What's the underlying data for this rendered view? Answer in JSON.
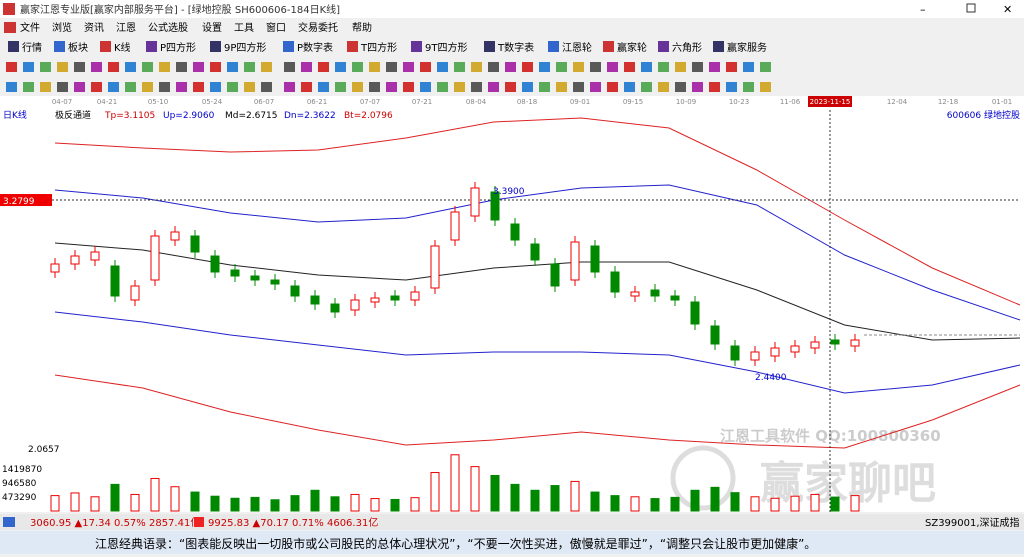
{
  "window": {
    "title": "赢家江恩专业版[赢家内部服务平台] - [绿地控股  SH600606-184日K线]"
  },
  "menu": [
    "文件",
    "浏览",
    "资讯",
    "江恩",
    "公式选股",
    "设置",
    "工具",
    "窗口",
    "交易委托",
    "帮助"
  ],
  "toolbar": [
    "行情",
    "板块",
    "K线",
    "P四方形",
    "9P四方形",
    "P数字表",
    "T四方形",
    "9T四方形",
    "T数字表",
    "江恩轮",
    "赢家轮",
    "六角形",
    "赢家服务"
  ],
  "chart": {
    "period": "日K线",
    "indicator": "极反通道",
    "params": [
      "Tp=3.1105",
      "Up=2.9060",
      "Md=2.6715",
      "Dn=2.3622",
      "Bt=2.0796"
    ],
    "stock": "600606  绿地控股",
    "cursor_price": "3.2799",
    "low_price": "2.0657",
    "high_label": "3.3900",
    "low_label": "2.4400",
    "dates": [
      "04-07",
      "04-21",
      "05-10",
      "05-24",
      "06-07",
      "06-21",
      "07-07",
      "07-21",
      "08-04",
      "08-18",
      "09-01",
      "09-15",
      "10-09",
      "10-23",
      "11-06",
      "2023-11-15",
      "12-04",
      "12-18",
      "01-01"
    ],
    "open": [
      2.92,
      2.96,
      2.98,
      2.95,
      2.78,
      2.88,
      3.08,
      3.1,
      3.0,
      2.93,
      2.9,
      2.88,
      2.85,
      2.8,
      2.76,
      2.73,
      2.77,
      2.8,
      2.78,
      2.84,
      3.08,
      3.2,
      3.32,
      3.16,
      3.06,
      2.96,
      2.88,
      3.05,
      2.92,
      2.8,
      2.83,
      2.8,
      2.77,
      2.65,
      2.55,
      2.48,
      2.5,
      2.52,
      2.54,
      2.58,
      2.55
    ],
    "close": [
      2.96,
      3.0,
      3.02,
      2.8,
      2.85,
      3.1,
      3.12,
      3.02,
      2.92,
      2.9,
      2.88,
      2.86,
      2.8,
      2.76,
      2.72,
      2.78,
      2.79,
      2.78,
      2.82,
      3.05,
      3.22,
      3.34,
      3.18,
      3.08,
      2.98,
      2.85,
      3.07,
      2.92,
      2.82,
      2.82,
      2.8,
      2.78,
      2.66,
      2.56,
      2.48,
      2.52,
      2.54,
      2.55,
      2.57,
      2.56,
      2.58
    ],
    "volume": [
      520000,
      610000,
      480000,
      900000,
      560000,
      1100000,
      820000,
      640000,
      500000,
      430000,
      460000,
      380000,
      520000,
      700000,
      480000,
      560000,
      420000,
      390000,
      450000,
      1300000,
      1900000,
      1500000,
      1200000,
      900000,
      700000,
      860000,
      1000000,
      640000,
      520000,
      480000,
      420000,
      460000,
      700000,
      800000,
      620000,
      480000,
      430000,
      500000,
      560000,
      470000,
      520000
    ],
    "bands": {
      "upper_red": [
        3.565,
        3.54,
        3.52,
        3.53,
        3.59,
        3.67,
        3.69,
        3.64,
        3.43,
        3.18,
        2.94,
        2.755
      ],
      "upper_blue": [
        3.33,
        3.29,
        3.215,
        3.17,
        3.19,
        3.28,
        3.34,
        3.355,
        3.255,
        3.005,
        2.83,
        2.68
      ],
      "middle": [
        3.065,
        3.03,
        2.955,
        2.905,
        2.88,
        2.94,
        2.97,
        2.97,
        2.83,
        2.655,
        2.58,
        2.59
      ],
      "lower_blue": [
        2.72,
        2.67,
        2.605,
        2.555,
        2.505,
        2.52,
        2.52,
        2.505,
        2.42,
        2.315,
        2.355,
        2.455
      ],
      "lower_red": [
        2.405,
        2.34,
        2.22,
        2.13,
        2.055,
        2.08,
        2.12,
        2.08,
        2.055,
        2.04,
        2.18,
        2.355
      ]
    },
    "volume_ticks": [
      "1419870",
      "946580",
      "473290"
    ],
    "watermark": [
      "江恩工具软件  QQ:100800360",
      "赢家聊吧"
    ]
  },
  "status": {
    "sh": "3060.95 ▲17.34 0.57% 2857.41亿",
    "sz": "9925.83 ▲70.17 0.71% 4606.31亿",
    "code": "SZ399001,深证成指"
  },
  "quote": "江恩经典语录：“图表能反映出一切股市或公司股民的总体心理状况”，“不要一次性买进，傲慢就是罪过”，“调整只会让股市更加健康”。"
}
